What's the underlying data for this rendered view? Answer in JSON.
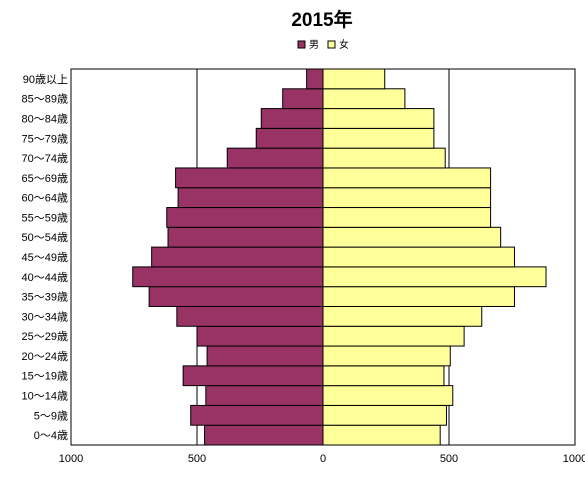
{
  "chart_data": {
    "type": "bar",
    "orientation": "horizontal-population-pyramid",
    "title": "2015年",
    "legend_position": "top-center",
    "grid": true,
    "categories": [
      "0～4歳",
      "5～9歳",
      "10～14歳",
      "15～19歳",
      "20～24歳",
      "25～29歳",
      "30～34歳",
      "35～39歳",
      "40～44歳",
      "45～49歳",
      "50～54歳",
      "55～59歳",
      "60～64歳",
      "65～69歳",
      "70～74歳",
      "75～79歳",
      "80～84歳",
      "85～89歳",
      "90歳以上"
    ],
    "series": [
      {
        "name": "男",
        "color": "#993366",
        "direction": "left",
        "values": [
          470,
          525,
          465,
          555,
          460,
          500,
          580,
          690,
          755,
          680,
          615,
          620,
          575,
          585,
          380,
          265,
          245,
          160,
          65
        ]
      },
      {
        "name": "女",
        "color": "#ffff99",
        "direction": "right",
        "values": [
          465,
          490,
          515,
          480,
          505,
          560,
          630,
          760,
          885,
          760,
          705,
          665,
          665,
          665,
          485,
          440,
          440,
          325,
          245
        ]
      }
    ],
    "xlim": [
      -1000,
      1000
    ],
    "x_ticks": [
      -1000,
      -500,
      0,
      500,
      1000
    ],
    "x_tick_labels": [
      "1000",
      "500",
      "0",
      "500",
      "1000"
    ]
  }
}
